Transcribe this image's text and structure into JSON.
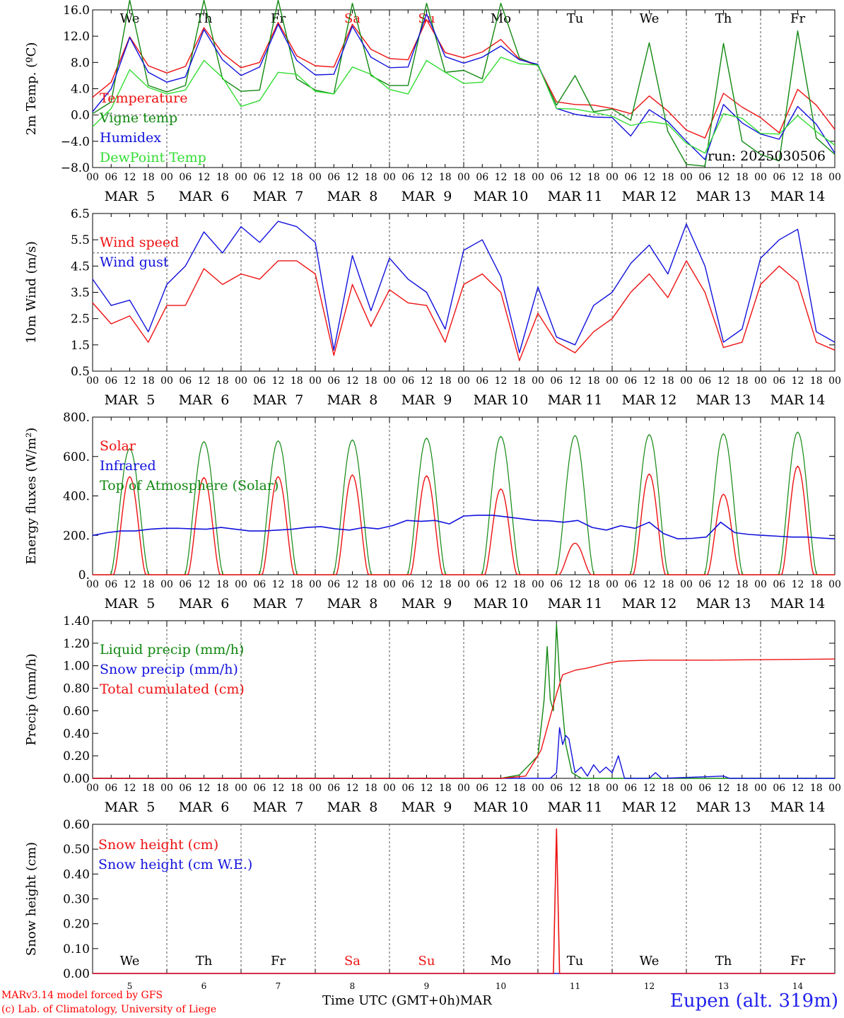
{
  "colors": {
    "red": "#ee1111",
    "green": "#118811",
    "blue": "#1111dd",
    "lightgreen": "#33dd33",
    "grid": "#555555"
  },
  "days": {
    "abbr": [
      "We",
      "Th",
      "Fr",
      "Sa",
      "Su",
      "Mo",
      "Tu",
      "We",
      "Th",
      "Fr"
    ],
    "weekend_flags": [
      false,
      false,
      false,
      true,
      true,
      false,
      false,
      false,
      false,
      false
    ],
    "dates": [
      "MAR  5",
      "MAR  6",
      "MAR  7",
      "MAR  8",
      "MAR  9",
      "MAR 10",
      "MAR 11",
      "MAR 12",
      "MAR 13",
      "MAR 14"
    ],
    "day_numbers": [
      "5",
      "6",
      "7",
      "8",
      "9",
      "10",
      "11",
      "12",
      "13",
      "14"
    ],
    "hour_ticks": [
      "00",
      "06",
      "12",
      "18"
    ],
    "final_tick": "00"
  },
  "chart_data": [
    {
      "type": "line",
      "ylabel": "2m Temp. (ºC)",
      "ylim": [
        -8,
        16
      ],
      "yticks": [
        "16.0",
        "12.0",
        "8.0",
        "4.0",
        "0.0",
        "−4.0",
        "−8.0"
      ],
      "annotation": "run: 2025030506",
      "x_hours": [
        0,
        6,
        12,
        18,
        24,
        30,
        36,
        42,
        48,
        54,
        60,
        66,
        72,
        78,
        84,
        90,
        96,
        102,
        108,
        114,
        120,
        126,
        132,
        138,
        144,
        150,
        156,
        162,
        168,
        174,
        180,
        186,
        192,
        198,
        204,
        210,
        216,
        222,
        228,
        234,
        240
      ],
      "series": [
        {
          "name": "Temperature",
          "color": "red",
          "values": [
            2.7,
            5,
            11.9,
            7.5,
            6.4,
            7.4,
            13.3,
            9.4,
            7.2,
            8,
            14.1,
            9,
            7.5,
            7.3,
            13.8,
            10,
            8.6,
            8.4,
            14.5,
            9.5,
            8.7,
            9.6,
            11.5,
            8.5,
            7.5,
            2,
            1.6,
            1.5,
            1,
            0.2,
            2.9,
            0.6,
            -2.3,
            -3.5,
            3.3,
            1.2,
            -0.4,
            -2.7,
            3.9,
            1.5,
            -2.2
          ]
        },
        {
          "name": "Vigne temp",
          "color": "green",
          "values": [
            0.2,
            2,
            17.5,
            4.5,
            3.5,
            4.5,
            17.5,
            5.5,
            3.6,
            3.8,
            17.5,
            5.5,
            3.8,
            3.2,
            17,
            6,
            4.5,
            4.5,
            17,
            6.5,
            6.8,
            5.5,
            17,
            8.7,
            7.5,
            1.5,
            6,
            0.5,
            0.9,
            -0.8,
            11,
            -2.5,
            -7.5,
            -7.8,
            10.9,
            -4,
            -6,
            -7,
            12.8,
            -3.5,
            -6
          ]
        },
        {
          "name": "Humidex",
          "color": "blue",
          "values": [
            0.5,
            4,
            11.8,
            6.5,
            5,
            5.8,
            13,
            8.4,
            6,
            7.3,
            13.8,
            8.3,
            6.1,
            6.2,
            13.5,
            8.8,
            7.2,
            7.3,
            15.4,
            8.9,
            7.9,
            8.8,
            10.5,
            8.4,
            7.7,
            1,
            0.1,
            -0.3,
            -0.4,
            -3.2,
            0.8,
            -1,
            -4,
            -6.8,
            1.6,
            -1.2,
            -2.9,
            -3.7,
            1.3,
            -1.4,
            -5.8
          ]
        },
        {
          "name": "DewPoint Temp",
          "color": "lightgreen",
          "values": [
            -1.8,
            1,
            6.9,
            4.2,
            3.2,
            3.8,
            8.3,
            5.7,
            1.3,
            2.2,
            6.5,
            6.2,
            3.6,
            3.2,
            7.3,
            6.2,
            3.9,
            3.2,
            8.3,
            6.5,
            4.8,
            5,
            8.8,
            7.8,
            7.6,
            1,
            0.9,
            0.4,
            -0.2,
            -1.6,
            -1,
            -1.4,
            -4.3,
            -5.8,
            0.2,
            -0.5,
            -2.8,
            -2.9,
            -0.1,
            -2.5,
            -4.6
          ]
        }
      ]
    },
    {
      "type": "line",
      "ylabel": "10m Wind (m/s)",
      "ylim": [
        0.5,
        6.5
      ],
      "yticks": [
        "6.5",
        "5.5",
        "4.5",
        "3.5",
        "2.5",
        "1.5",
        "0.5"
      ],
      "x_hours": [
        0,
        6,
        12,
        18,
        24,
        30,
        36,
        42,
        48,
        54,
        60,
        66,
        72,
        78,
        84,
        90,
        96,
        102,
        108,
        114,
        120,
        126,
        132,
        138,
        144,
        150,
        156,
        162,
        168,
        174,
        180,
        186,
        192,
        198,
        204,
        210,
        216,
        222,
        228,
        234,
        240
      ],
      "series": [
        {
          "name": "Wind speed",
          "color": "red",
          "values": [
            3.1,
            2.3,
            2.6,
            1.6,
            3,
            3,
            4.4,
            3.8,
            4.2,
            4,
            4.7,
            4.7,
            4.2,
            1.1,
            3.8,
            2.2,
            3.6,
            3.1,
            3,
            1.6,
            3.8,
            4.2,
            3.5,
            0.9,
            2.7,
            1.6,
            1.2,
            2,
            2.5,
            3.5,
            4.2,
            3.3,
            4.7,
            3.5,
            1.4,
            1.6,
            3.8,
            4.5,
            3.9,
            1.6,
            1.3
          ]
        },
        {
          "name": "Wind gust",
          "color": "blue",
          "values": [
            4,
            3,
            3.2,
            2,
            3.8,
            4.5,
            5.8,
            5,
            6,
            5.4,
            6.2,
            6,
            5.4,
            1.3,
            4.9,
            2.8,
            4.8,
            4,
            3.5,
            2.1,
            5.1,
            5.5,
            4.1,
            1.2,
            3.7,
            1.8,
            1.5,
            3,
            3.5,
            4.6,
            5.3,
            4.2,
            6.1,
            4.5,
            1.6,
            2.1,
            4.8,
            5.5,
            5.9,
            2,
            1.6
          ]
        }
      ],
      "reference_line": 5
    },
    {
      "type": "line",
      "ylabel": "Energy fluxes (W/m²)",
      "ylim": [
        0,
        900
      ],
      "yticks": [
        "800.",
        "600.",
        "400.",
        "200.",
        "0."
      ],
      "series": [
        {
          "name": "Solar",
          "color": "red",
          "peaks": [
            560,
            555,
            560,
            570,
            565,
            490,
            180,
            575,
            460,
            620
          ]
        },
        {
          "name": "Infrared",
          "color": "blue",
          "values": [
            225,
            240,
            250,
            250,
            260,
            265,
            265,
            262,
            260,
            270,
            260,
            250,
            250,
            255,
            260,
            270,
            275,
            262,
            255,
            270,
            262,
            280,
            310,
            305,
            310,
            290,
            335,
            340,
            340,
            330,
            320,
            310,
            308,
            300,
            310,
            270,
            255,
            280,
            265,
            300,
            235,
            205,
            208,
            215,
            300,
            240,
            230,
            225,
            220,
            215,
            215,
            210,
            205
          ]
        },
        {
          "name": "Top of Atmosphere (Solar)",
          "color": "green",
          "peaks": [
            720,
            760,
            765,
            770,
            780,
            790,
            795,
            800,
            805,
            815
          ]
        }
      ]
    },
    {
      "type": "line",
      "ylabel": "Precip (mm/h)",
      "ylim": [
        0,
        1.4
      ],
      "yticks": [
        "1.40",
        "1.20",
        "1.00",
        "0.80",
        "0.60",
        "0.40",
        "0.20",
        "0.00"
      ],
      "series": [
        {
          "name": "Liquid precip (mm/h)",
          "color": "green",
          "points": [
            [
              132,
              0
            ],
            [
              138,
              0.03
            ],
            [
              144,
              0.2
            ],
            [
              146,
              0.7
            ],
            [
              147,
              1.17
            ],
            [
              148,
              0.7
            ],
            [
              149,
              0.6
            ],
            [
              150,
              1.37
            ],
            [
              151,
              0.9
            ],
            [
              153,
              0.3
            ],
            [
              155,
              0.05
            ],
            [
              158,
              0
            ]
          ]
        },
        {
          "name": "Snow precip (mm/h)",
          "color": "blue",
          "points": [
            [
              148,
              0
            ],
            [
              150,
              0.05
            ],
            [
              151,
              0.45
            ],
            [
              152,
              0.3
            ],
            [
              153,
              0.38
            ],
            [
              154,
              0.35
            ],
            [
              156,
              0.05
            ],
            [
              158,
              0.1
            ],
            [
              160,
              0.02
            ],
            [
              162,
              0.12
            ],
            [
              164,
              0.05
            ],
            [
              166,
              0.1
            ],
            [
              168,
              0.05
            ],
            [
              170,
              0.2
            ],
            [
              172,
              0
            ],
            [
              180,
              0
            ],
            [
              182,
              0.05
            ],
            [
              184,
              0
            ],
            [
              204,
              0.02
            ],
            [
              206,
              0
            ]
          ]
        },
        {
          "name": "Total cumulated (cm)",
          "color": "red",
          "points": [
            [
              132,
              0
            ],
            [
              140,
              0.02
            ],
            [
              145,
              0.25
            ],
            [
              148,
              0.55
            ],
            [
              150,
              0.75
            ],
            [
              152,
              0.92
            ],
            [
              156,
              0.96
            ],
            [
              160,
              0.98
            ],
            [
              166,
              1.02
            ],
            [
              170,
              1.04
            ],
            [
              180,
              1.05
            ],
            [
              200,
              1.05
            ],
            [
              240,
              1.06
            ]
          ]
        }
      ]
    },
    {
      "type": "line",
      "ylabel": "Snow height (cm)",
      "ylim": [
        0,
        0.65
      ],
      "yticks": [
        "0.60",
        "0.50",
        "0.40",
        "0.30",
        "0.20",
        "0.10",
        "0.00"
      ],
      "series": [
        {
          "name": "Snow height (cm)",
          "color": "red",
          "points": [
            [
              0,
              0
            ],
            [
              149,
              0
            ],
            [
              150,
              0.63
            ],
            [
              151,
              0
            ],
            [
              240,
              0
            ]
          ]
        },
        {
          "name": "Snow height (cm W.E.)",
          "color": "blue",
          "points": [
            [
              0,
              0
            ],
            [
              240,
              0
            ]
          ]
        }
      ],
      "xlabel": "Time UTC (GMT+0h)",
      "xlabel_month": "MAR"
    }
  ],
  "footer": {
    "model": "MARv3.14 model forced by GFS",
    "copyright": "(c) Lab. of Climatology, University of Liege",
    "station": "Eupen (alt. 319m)"
  }
}
